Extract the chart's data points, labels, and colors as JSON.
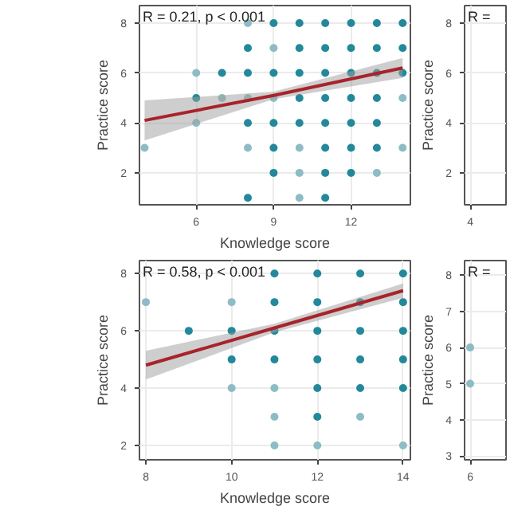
{
  "chart_data": [
    {
      "type": "scatter",
      "xlim": [
        3.8,
        14.3
      ],
      "ylim": [
        0.72,
        8.7
      ],
      "xticks": [
        6,
        9,
        12
      ],
      "yticks": [
        2,
        4,
        6,
        8
      ],
      "xlabel": "Knowledge score",
      "ylabel": "Practice score",
      "grid": true,
      "annotations": [
        "R = 0.21, p < 0.001"
      ],
      "series": [
        {
          "color": "#23899a",
          "x": [
            9,
            10,
            11,
            12,
            13,
            14,
            8,
            10,
            11,
            12,
            13,
            14,
            7,
            8,
            9,
            10,
            11,
            12,
            13,
            14,
            6,
            10,
            11,
            12,
            13,
            8,
            9,
            10,
            11,
            12,
            13,
            9,
            11,
            12,
            13,
            9,
            11,
            12,
            8,
            11
          ],
          "values": [
            8,
            8,
            8,
            8,
            8,
            8,
            7,
            7,
            7,
            7,
            7,
            7,
            6,
            6,
            6,
            6,
            6,
            6,
            6,
            6,
            5,
            5,
            5,
            5,
            5,
            4,
            4,
            4,
            4,
            4,
            4,
            3,
            3,
            3,
            3,
            2,
            2,
            2,
            1,
            1
          ]
        },
        {
          "color": "#8dbcc5",
          "x": [
            8,
            9,
            6,
            7,
            8,
            9,
            14,
            6,
            4,
            8,
            10,
            14,
            10,
            13,
            10
          ],
          "values": [
            8,
            7,
            6,
            5,
            5,
            5,
            5,
            4,
            3,
            3,
            3,
            3,
            2,
            2,
            1
          ]
        },
        {
          "type": "line",
          "color": "#a8232a",
          "x": [
            4,
            9,
            14
          ],
          "values": [
            4.1,
            5.1,
            6.2
          ],
          "lower": [
            3.3,
            4.95,
            5.8
          ],
          "upper": [
            4.9,
            5.25,
            6.6
          ]
        }
      ]
    },
    {
      "type": "scatter",
      "categories": [
        "4"
      ],
      "ylim": [
        0.72,
        8.7
      ],
      "yticks": [
        2,
        4,
        6,
        8
      ],
      "ylabel": "Practice score",
      "grid": true,
      "annotations": [
        "R ="
      ]
    },
    {
      "type": "scatter",
      "xlim": [
        7.85,
        14.17
      ],
      "ylim": [
        1.5,
        8.45
      ],
      "xticks": [
        8,
        10,
        12,
        14
      ],
      "yticks": [
        2,
        4,
        6,
        8
      ],
      "xlabel": "Knowledge score",
      "ylabel": "Practice score",
      "grid": true,
      "annotations": [
        "R = 0.58, p < 0.001"
      ],
      "series": [
        {
          "color": "#23899a",
          "x": [
            11,
            12,
            13,
            14,
            11,
            12,
            13,
            14,
            9,
            10,
            11,
            12,
            13,
            14,
            10,
            11,
            12,
            13,
            14,
            12,
            13,
            14,
            12
          ],
          "values": [
            8,
            8,
            8,
            8,
            7,
            7,
            7,
            7,
            6,
            6,
            6,
            6,
            6,
            6,
            5,
            5,
            5,
            5,
            5,
            4,
            4,
            4,
            3
          ]
        },
        {
          "color": "#8dbcc5",
          "x": [
            8,
            10,
            10,
            11,
            11,
            13,
            11,
            12,
            14
          ],
          "values": [
            7,
            7,
            4,
            4,
            3,
            3,
            2,
            2,
            2
          ]
        },
        {
          "type": "line",
          "color": "#a8232a",
          "x": [
            8,
            11,
            14
          ],
          "values": [
            4.8,
            6.1,
            7.4
          ],
          "lower": [
            4.3,
            5.95,
            7.15
          ],
          "upper": [
            5.3,
            6.25,
            7.65
          ]
        }
      ]
    },
    {
      "type": "scatter",
      "categories": [
        "6"
      ],
      "ylim": [
        2.9,
        8.4
      ],
      "yticks": [
        3,
        4,
        5,
        6,
        7,
        8
      ],
      "ylabel": "Practice score",
      "grid": true,
      "annotations": [
        "R ="
      ],
      "series": [
        {
          "color": "#8dbcc5",
          "values": [
            6
          ]
        },
        {
          "color": "#8dbcc5",
          "values": [
            5
          ]
        }
      ]
    }
  ]
}
